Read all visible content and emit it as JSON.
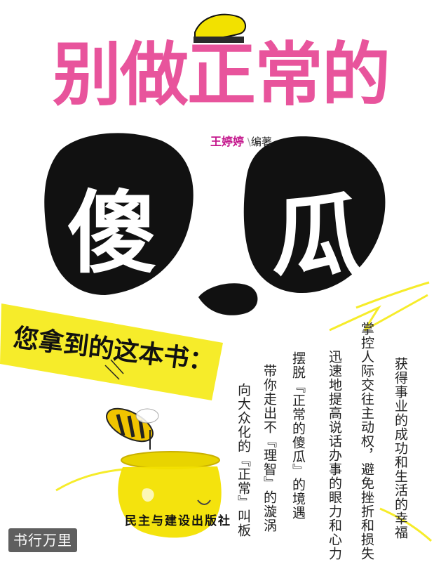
{
  "cover": {
    "title": "别做正常的",
    "big_chars": [
      "傻",
      "瓜"
    ],
    "editor_name": "王婷婷",
    "editor_role": "编著",
    "banner": "您拿到的这本书：",
    "lines": [
      "获得事业的成功和生活的幸福",
      "掌控人际交往主动权，避免挫折和损失",
      "迅速地提高说话办事的眼力和心力",
      "摆脱『正常的傻瓜』的境遇",
      "带你走出不『理智』的漩涡",
      "向大众化的『正常』叫板"
    ],
    "publisher": "民主与建设出版社",
    "watermark": "书行万里"
  },
  "colors": {
    "title_pink": "#e8549c",
    "banner_yellow": "#f6ec2a",
    "accent_yellow": "#f2e100",
    "panda_black": "#111111"
  }
}
